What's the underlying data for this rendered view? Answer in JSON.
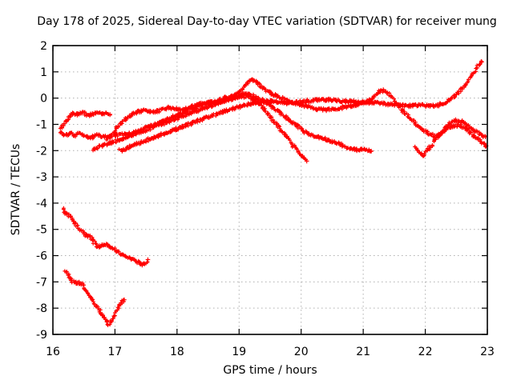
{
  "chart_data": {
    "type": "scatter",
    "title": "Day 178 of 2025, Sidereal Day-to-day VTEC variation (SDTVAR) for receiver mung",
    "xlabel": "GPS time / hours",
    "ylabel": "SDTVAR / TECUs",
    "xlim": [
      16,
      23
    ],
    "ylim": [
      -9,
      2
    ],
    "x_ticks": [
      16,
      17,
      18,
      19,
      20,
      21,
      22,
      23
    ],
    "y_ticks": [
      2,
      1,
      0,
      -1,
      -2,
      -3,
      -4,
      -5,
      -6,
      -7,
      -8,
      -9
    ],
    "grid": true,
    "legend": "none",
    "marker": "plus",
    "marker_color": "#ff0000",
    "grid_color": "#b0b0b0",
    "axis_color": "#000000",
    "background": "#ffffff",
    "series": [
      {
        "name": "trace-1",
        "points": [
          [
            16.13,
            -1.18
          ],
          [
            16.17,
            -1.05
          ],
          [
            16.22,
            -0.85
          ],
          [
            16.27,
            -0.68
          ],
          [
            16.32,
            -0.58
          ],
          [
            16.38,
            -0.64
          ],
          [
            16.44,
            -0.56
          ],
          [
            16.5,
            -0.55
          ],
          [
            16.56,
            -0.68
          ],
          [
            16.62,
            -0.62
          ],
          [
            16.68,
            -0.58
          ],
          [
            16.74,
            -0.56
          ],
          [
            16.8,
            -0.6
          ],
          [
            16.86,
            -0.55
          ],
          [
            16.92,
            -0.62
          ]
        ]
      },
      {
        "name": "trace-2",
        "points": [
          [
            16.12,
            -1.28
          ],
          [
            16.18,
            -1.45
          ],
          [
            16.24,
            -1.38
          ],
          [
            16.3,
            -1.33
          ],
          [
            16.36,
            -1.44
          ],
          [
            16.42,
            -1.36
          ],
          [
            16.48,
            -1.4
          ],
          [
            16.54,
            -1.45
          ],
          [
            16.6,
            -1.52
          ],
          [
            16.66,
            -1.46
          ],
          [
            16.72,
            -1.4
          ],
          [
            16.8,
            -1.45
          ],
          [
            16.88,
            -1.52
          ],
          [
            16.96,
            -1.45
          ],
          [
            17.04,
            -1.4
          ],
          [
            17.14,
            -1.37
          ],
          [
            17.25,
            -1.35
          ],
          [
            17.36,
            -1.28
          ],
          [
            17.48,
            -1.16
          ],
          [
            17.6,
            -1.05
          ],
          [
            17.73,
            -0.92
          ],
          [
            17.86,
            -0.78
          ],
          [
            18.0,
            -0.63
          ],
          [
            18.14,
            -0.5
          ],
          [
            18.28,
            -0.38
          ],
          [
            18.42,
            -0.25
          ],
          [
            18.56,
            -0.14
          ],
          [
            18.7,
            -0.05
          ],
          [
            18.84,
            0.04
          ],
          [
            18.98,
            0.12
          ],
          [
            19.1,
            0.16
          ],
          [
            19.22,
            0.1
          ],
          [
            19.34,
            -0.04
          ],
          [
            19.46,
            -0.2
          ],
          [
            19.58,
            -0.4
          ],
          [
            19.7,
            -0.62
          ],
          [
            19.82,
            -0.85
          ],
          [
            19.94,
            -1.05
          ],
          [
            20.06,
            -1.28
          ],
          [
            20.18,
            -1.42
          ],
          [
            20.3,
            -1.5
          ],
          [
            20.42,
            -1.58
          ],
          [
            20.55,
            -1.68
          ],
          [
            20.68,
            -1.82
          ],
          [
            20.8,
            -1.92
          ],
          [
            20.92,
            -1.97
          ],
          [
            21.0,
            -1.94
          ],
          [
            21.07,
            -1.98
          ],
          [
            21.13,
            -2.02
          ]
        ]
      },
      {
        "name": "trace-3",
        "points": [
          [
            16.64,
            -2.0
          ],
          [
            16.7,
            -1.88
          ],
          [
            16.78,
            -1.82
          ],
          [
            16.88,
            -1.74
          ],
          [
            17.0,
            -1.65
          ],
          [
            17.12,
            -1.55
          ],
          [
            17.25,
            -1.43
          ],
          [
            17.38,
            -1.32
          ],
          [
            17.52,
            -1.2
          ],
          [
            17.66,
            -1.07
          ],
          [
            17.8,
            -0.95
          ],
          [
            17.94,
            -0.82
          ],
          [
            18.08,
            -0.7
          ],
          [
            18.22,
            -0.57
          ],
          [
            18.36,
            -0.45
          ],
          [
            18.5,
            -0.33
          ],
          [
            18.64,
            -0.21
          ],
          [
            18.78,
            -0.1
          ],
          [
            18.9,
            -0.02
          ],
          [
            19.02,
            0.05
          ],
          [
            19.14,
            0.08
          ],
          [
            19.24,
            -0.05
          ],
          [
            19.35,
            -0.3
          ],
          [
            19.47,
            -0.62
          ],
          [
            19.6,
            -1.0
          ],
          [
            19.72,
            -1.35
          ],
          [
            19.84,
            -1.72
          ],
          [
            19.94,
            -2.02
          ],
          [
            20.03,
            -2.25
          ],
          [
            20.09,
            -2.4
          ]
        ]
      },
      {
        "name": "trace-4",
        "points": [
          [
            17.08,
            -2.0
          ],
          [
            17.28,
            -1.82
          ],
          [
            17.48,
            -1.63
          ],
          [
            17.68,
            -1.45
          ],
          [
            17.88,
            -1.27
          ],
          [
            18.08,
            -1.1
          ],
          [
            18.28,
            -0.92
          ],
          [
            18.48,
            -0.74
          ],
          [
            18.68,
            -0.57
          ],
          [
            18.88,
            -0.42
          ],
          [
            19.05,
            -0.3
          ],
          [
            19.2,
            -0.2
          ],
          [
            19.35,
            -0.14
          ],
          [
            19.5,
            -0.13
          ],
          [
            19.65,
            -0.16
          ],
          [
            19.8,
            -0.2
          ],
          [
            19.95,
            -0.15
          ],
          [
            20.1,
            -0.1
          ],
          [
            20.25,
            -0.08
          ],
          [
            20.4,
            -0.06
          ],
          [
            20.55,
            -0.08
          ],
          [
            20.7,
            -0.12
          ],
          [
            20.85,
            -0.14
          ],
          [
            21.0,
            -0.16
          ],
          [
            21.15,
            -0.18
          ],
          [
            21.3,
            -0.2
          ],
          [
            21.45,
            -0.24
          ],
          [
            21.6,
            -0.27
          ],
          [
            21.75,
            -0.3
          ],
          [
            21.9,
            -0.27
          ],
          [
            22.05,
            -0.3
          ],
          [
            22.2,
            -0.27
          ],
          [
            22.32,
            -0.18
          ],
          [
            22.44,
            0.0
          ],
          [
            22.54,
            0.22
          ],
          [
            22.63,
            0.45
          ],
          [
            22.72,
            0.75
          ],
          [
            22.8,
            1.05
          ],
          [
            22.87,
            1.3
          ],
          [
            22.91,
            1.38
          ]
        ]
      },
      {
        "name": "trace-5",
        "points": [
          [
            16.87,
            -1.58
          ],
          [
            16.95,
            -1.4
          ],
          [
            17.03,
            -1.15
          ],
          [
            17.12,
            -0.9
          ],
          [
            17.2,
            -0.72
          ],
          [
            17.3,
            -0.58
          ],
          [
            17.4,
            -0.5
          ],
          [
            17.5,
            -0.47
          ],
          [
            17.6,
            -0.52
          ],
          [
            17.7,
            -0.5
          ],
          [
            17.78,
            -0.42
          ],
          [
            17.86,
            -0.36
          ],
          [
            17.95,
            -0.38
          ],
          [
            18.04,
            -0.44
          ],
          [
            18.13,
            -0.42
          ],
          [
            18.22,
            -0.35
          ],
          [
            18.32,
            -0.26
          ],
          [
            18.42,
            -0.2
          ],
          [
            18.52,
            -0.15
          ],
          [
            18.62,
            -0.18
          ],
          [
            18.72,
            -0.12
          ],
          [
            18.82,
            -0.05
          ],
          [
            18.9,
            0.05
          ],
          [
            18.98,
            0.2
          ],
          [
            19.06,
            0.4
          ],
          [
            19.14,
            0.58
          ],
          [
            19.2,
            0.7
          ],
          [
            19.27,
            0.62
          ],
          [
            19.34,
            0.48
          ],
          [
            19.42,
            0.33
          ],
          [
            19.5,
            0.2
          ],
          [
            19.6,
            0.08
          ],
          [
            19.7,
            -0.02
          ],
          [
            19.8,
            -0.12
          ],
          [
            19.9,
            -0.2
          ],
          [
            20.02,
            -0.28
          ],
          [
            20.14,
            -0.35
          ],
          [
            20.26,
            -0.42
          ],
          [
            20.38,
            -0.45
          ],
          [
            20.5,
            -0.42
          ],
          [
            20.62,
            -0.38
          ],
          [
            20.74,
            -0.33
          ],
          [
            20.86,
            -0.28
          ],
          [
            20.98,
            -0.22
          ],
          [
            21.08,
            -0.12
          ],
          [
            21.17,
            0.05
          ],
          [
            21.26,
            0.25
          ],
          [
            21.33,
            0.3
          ],
          [
            21.4,
            0.2
          ],
          [
            21.48,
            -0.02
          ],
          [
            21.56,
            -0.28
          ],
          [
            21.65,
            -0.52
          ],
          [
            21.74,
            -0.75
          ],
          [
            21.83,
            -0.95
          ],
          [
            21.92,
            -1.12
          ],
          [
            22.01,
            -1.28
          ],
          [
            22.1,
            -1.4
          ],
          [
            22.17,
            -1.47
          ],
          [
            22.25,
            -1.35
          ],
          [
            22.33,
            -1.12
          ],
          [
            22.41,
            -0.95
          ],
          [
            22.49,
            -0.85
          ],
          [
            22.57,
            -0.88
          ],
          [
            22.65,
            -1.0
          ],
          [
            22.74,
            -1.15
          ],
          [
            22.83,
            -1.3
          ],
          [
            22.91,
            -1.42
          ],
          [
            22.97,
            -1.48
          ]
        ]
      },
      {
        "name": "trace-6",
        "points": [
          [
            21.83,
            -1.88
          ],
          [
            21.88,
            -2.0
          ],
          [
            21.93,
            -2.1
          ],
          [
            21.97,
            -2.18
          ],
          [
            22.02,
            -2.05
          ],
          [
            22.08,
            -1.85
          ],
          [
            22.15,
            -1.62
          ],
          [
            22.22,
            -1.42
          ],
          [
            22.3,
            -1.25
          ],
          [
            22.38,
            -1.12
          ],
          [
            22.46,
            -1.05
          ],
          [
            22.54,
            -1.05
          ],
          [
            22.62,
            -1.1
          ],
          [
            22.7,
            -1.25
          ],
          [
            22.78,
            -1.42
          ],
          [
            22.86,
            -1.58
          ],
          [
            22.93,
            -1.72
          ],
          [
            22.98,
            -1.82
          ]
        ]
      },
      {
        "name": "trace-7",
        "points": [
          [
            16.16,
            -4.2
          ],
          [
            16.2,
            -4.35
          ],
          [
            16.25,
            -4.45
          ],
          [
            16.3,
            -4.55
          ],
          [
            16.33,
            -4.7
          ],
          [
            16.38,
            -4.85
          ],
          [
            16.44,
            -5.0
          ],
          [
            16.5,
            -5.15
          ],
          [
            16.55,
            -5.25
          ],
          [
            16.6,
            -5.3
          ],
          [
            16.65,
            -5.45
          ],
          [
            16.7,
            -5.6
          ],
          [
            16.75,
            -5.65
          ],
          [
            16.8,
            -5.58
          ],
          [
            16.85,
            -5.55
          ],
          [
            16.9,
            -5.62
          ],
          [
            16.95,
            -5.7
          ],
          [
            17.0,
            -5.78
          ],
          [
            17.05,
            -5.85
          ],
          [
            17.1,
            -5.95
          ],
          [
            17.17,
            -6.05
          ],
          [
            17.24,
            -6.08
          ],
          [
            17.3,
            -6.15
          ],
          [
            17.37,
            -6.25
          ],
          [
            17.44,
            -6.32
          ],
          [
            17.5,
            -6.28
          ],
          [
            17.53,
            -6.15
          ]
        ]
      },
      {
        "name": "trace-8",
        "points": [
          [
            16.2,
            -6.6
          ],
          [
            16.24,
            -6.72
          ],
          [
            16.28,
            -6.88
          ],
          [
            16.32,
            -7.0
          ],
          [
            16.37,
            -7.05
          ],
          [
            16.42,
            -7.02
          ],
          [
            16.47,
            -7.1
          ],
          [
            16.52,
            -7.25
          ],
          [
            16.57,
            -7.45
          ],
          [
            16.62,
            -7.65
          ],
          [
            16.67,
            -7.85
          ],
          [
            16.72,
            -8.0
          ],
          [
            16.77,
            -8.15
          ],
          [
            16.82,
            -8.35
          ],
          [
            16.87,
            -8.5
          ],
          [
            16.9,
            -8.6
          ],
          [
            16.95,
            -8.5
          ],
          [
            17.0,
            -8.25
          ],
          [
            17.04,
            -8.0
          ],
          [
            17.08,
            -7.9
          ],
          [
            17.12,
            -7.75
          ],
          [
            17.15,
            -7.68
          ]
        ]
      }
    ]
  }
}
